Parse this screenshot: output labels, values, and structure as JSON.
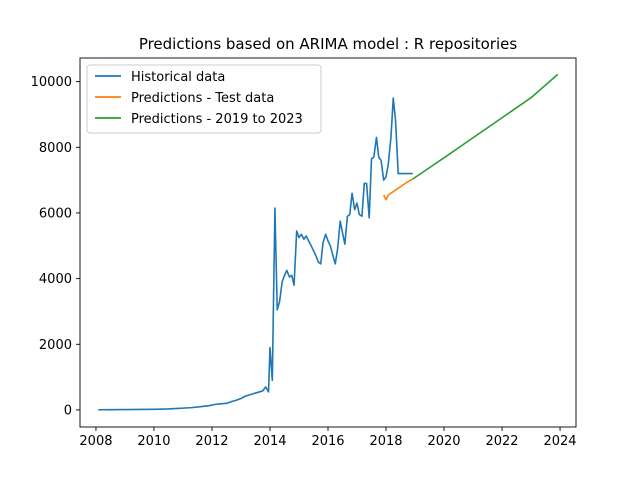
{
  "chart_data": {
    "type": "line",
    "title": "Predictions based on ARIMA model : R repositories",
    "xlabel": "",
    "ylabel": "",
    "xlim": [
      2007.45,
      2024.55
    ],
    "ylim": [
      -520,
      10720
    ],
    "x_ticks": [
      2008,
      2010,
      2012,
      2014,
      2016,
      2018,
      2020,
      2022,
      2024
    ],
    "y_ticks": [
      0,
      2000,
      4000,
      6000,
      8000,
      10000
    ],
    "grid": false,
    "legend_position": "top-left",
    "series": [
      {
        "name": "Historical data",
        "color": "#1f77b4",
        "x": [
          2008.08,
          2008.5,
          2009.0,
          2009.5,
          2010.0,
          2010.5,
          2010.8,
          2011.0,
          2011.3,
          2011.6,
          2011.9,
          2012.0,
          2012.2,
          2012.5,
          2012.7,
          2012.85,
          2013.0,
          2013.15,
          2013.3,
          2013.45,
          2013.6,
          2013.75,
          2013.85,
          2013.95,
          2014.0,
          2014.08,
          2014.17,
          2014.25,
          2014.33,
          2014.42,
          2014.5,
          2014.58,
          2014.67,
          2014.75,
          2014.83,
          2014.92,
          2015.0,
          2015.08,
          2015.17,
          2015.25,
          2015.33,
          2015.42,
          2015.5,
          2015.58,
          2015.67,
          2015.75,
          2015.83,
          2015.92,
          2016.0,
          2016.08,
          2016.17,
          2016.25,
          2016.33,
          2016.42,
          2016.5,
          2016.58,
          2016.67,
          2016.75,
          2016.83,
          2016.92,
          2017.0,
          2017.08,
          2017.17,
          2017.25,
          2017.33,
          2017.42,
          2017.5,
          2017.58,
          2017.67,
          2017.75,
          2017.83,
          2017.92,
          2018.0,
          2018.08,
          2018.17,
          2018.25,
          2018.33,
          2018.42,
          2018.5,
          2018.58,
          2018.67,
          2018.75,
          2018.83,
          2018.92
        ],
        "values": [
          5,
          8,
          10,
          15,
          20,
          30,
          45,
          55,
          70,
          100,
          130,
          150,
          180,
          200,
          260,
          300,
          350,
          420,
          460,
          500,
          540,
          580,
          700,
          550,
          1900,
          900,
          6150,
          3050,
          3300,
          3900,
          4100,
          4250,
          4050,
          4100,
          3800,
          5450,
          5250,
          5350,
          5200,
          5300,
          5150,
          5000,
          4850,
          4700,
          4500,
          4450,
          5100,
          5350,
          5150,
          5000,
          4700,
          4450,
          4900,
          5750,
          5400,
          5050,
          5900,
          5950,
          6600,
          6100,
          6300,
          5950,
          5900,
          6900,
          6900,
          5850,
          7650,
          7700,
          8300,
          7700,
          7600,
          7000,
          7100,
          7500,
          8300,
          9500,
          8800,
          7200,
          7200,
          7200,
          7200,
          7200,
          7200,
          7200
        ]
      },
      {
        "name": "Predictions - Test data",
        "color": "#ff7f0e",
        "x": [
          2017.92,
          2018.0,
          2018.08,
          2018.25,
          2018.5,
          2018.75,
          2018.92
        ],
        "values": [
          6550,
          6400,
          6550,
          6650,
          6800,
          6950,
          7030
        ]
      },
      {
        "name": "Predictions - 2019 to 2023",
        "color": "#2ca02c",
        "x": [
          2018.92,
          2019.5,
          2020.0,
          2021.0,
          2022.0,
          2023.0,
          2023.92
        ],
        "values": [
          7030,
          7380,
          7680,
          8290,
          8900,
          9510,
          10220
        ]
      }
    ]
  }
}
